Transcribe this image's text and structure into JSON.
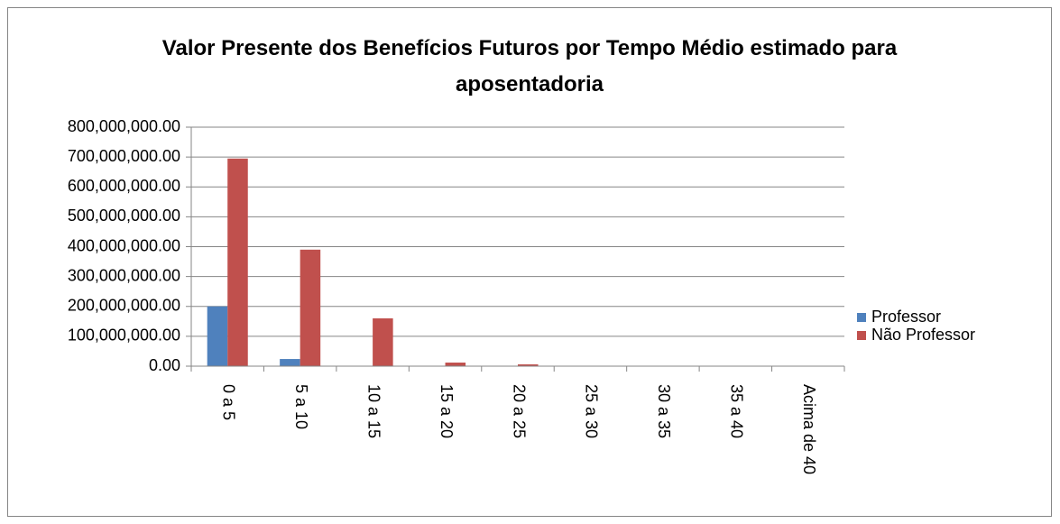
{
  "chart_data": {
    "type": "bar",
    "title": "Valor Presente dos Benefícios Futuros  por Tempo Médio estimado para aposentadoria",
    "categories": [
      "0 a 5",
      "5 a 10",
      "10 a 15",
      "15 a 20",
      "20 a 25",
      "25 a 30",
      "30 a 35",
      "35 a 40",
      "Acima de  40"
    ],
    "series": [
      {
        "name": "Professor",
        "color": "#4f81bd",
        "values": [
          200000000,
          24000000,
          0,
          0,
          0,
          0,
          0,
          0,
          0
        ]
      },
      {
        "name": "Não Professor",
        "color": "#c0504d",
        "values": [
          695000000,
          390000000,
          160000000,
          12000000,
          6000000,
          0,
          0,
          0,
          0
        ]
      }
    ],
    "ylim": [
      0,
      800000000
    ],
    "yticks": [
      {
        "value": 0,
        "label": "0.00"
      },
      {
        "value": 100000000,
        "label": "100,000,000.00"
      },
      {
        "value": 200000000,
        "label": "200,000,000.00"
      },
      {
        "value": 300000000,
        "label": "300,000,000.00"
      },
      {
        "value": 400000000,
        "label": "400,000,000.00"
      },
      {
        "value": 500000000,
        "label": "500,000,000.00"
      },
      {
        "value": 600000000,
        "label": "600,000,000.00"
      },
      {
        "value": 700000000,
        "label": "700,000,000.00"
      },
      {
        "value": 800000000,
        "label": "800,000,000.00"
      }
    ],
    "grid": true,
    "legend": "right"
  }
}
